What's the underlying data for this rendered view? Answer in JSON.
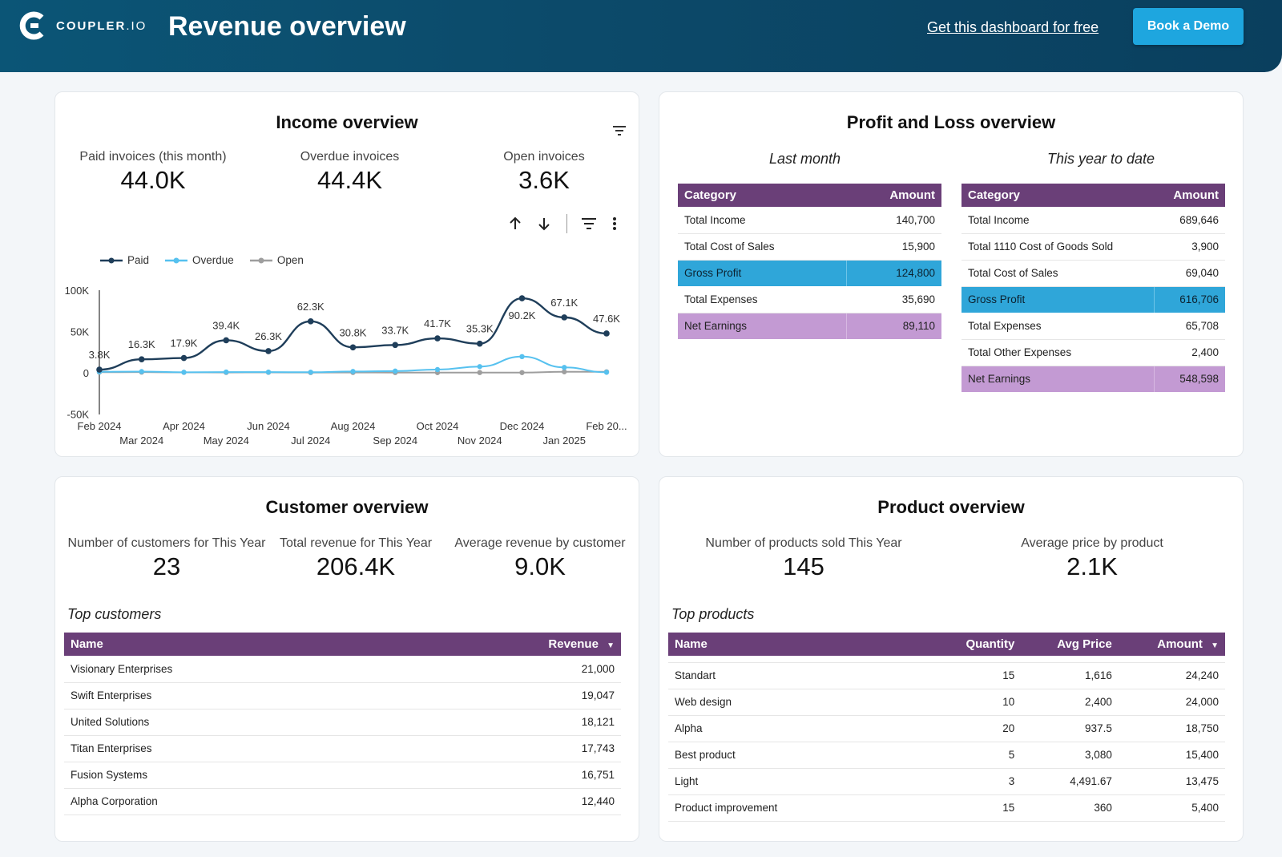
{
  "header": {
    "brand_main": "COUPLER",
    "brand_suffix": ".IO",
    "title": "Revenue overview",
    "link_label": "Get this dashboard for free",
    "button_label": "Book a Demo",
    "bg_color": "#0b5576",
    "button_color": "#1ea6df"
  },
  "income": {
    "title": "Income overview",
    "kpis": [
      {
        "label": "Paid invoices (this month)",
        "value": "44.0K"
      },
      {
        "label": "Overdue invoices",
        "value": "44.4K"
      },
      {
        "label": "Open invoices",
        "value": "3.6K"
      }
    ],
    "toolbar_icons": [
      "arrow-up-icon",
      "arrow-down-icon",
      "filter-icon",
      "more-vert-icon"
    ]
  },
  "chart_data": {
    "type": "line",
    "title": "",
    "x": [
      "Feb 2024",
      "Mar 2024",
      "Apr 2024",
      "May 2024",
      "Jun 2024",
      "Jul 2024",
      "Aug 2024",
      "Sep 2024",
      "Oct 2024",
      "Nov 2024",
      "Dec 2024",
      "Jan 2025",
      "Feb 20..."
    ],
    "series": [
      {
        "name": "Paid",
        "color": "#1f3e5a",
        "values": [
          3800,
          16300,
          17900,
          39400,
          26300,
          62300,
          30800,
          33700,
          41700,
          35300,
          90200,
          67100,
          47600
        ],
        "labels": [
          "3.8K",
          "16.3K",
          "17.9K",
          "39.4K",
          "26.3K",
          "62.3K",
          "30.8K",
          "33.7K",
          "41.7K",
          "35.3K",
          "90.2K",
          "67.1K",
          "47.6K"
        ]
      },
      {
        "name": "Overdue",
        "color": "#56c1ef",
        "values": [
          1200,
          1500,
          600,
          900,
          800,
          700,
          1600,
          2100,
          3900,
          7500,
          19600,
          6500,
          600
        ]
      },
      {
        "name": "Open",
        "color": "#9e9e9e",
        "values": [
          700,
          800,
          500,
          400,
          500,
          300,
          400,
          300,
          200,
          300,
          200,
          1200,
          1200
        ]
      }
    ],
    "yticks": [
      "100K",
      "50K",
      "0",
      "-50K"
    ],
    "ylim": [
      -50000,
      100000
    ],
    "legend": "top-left"
  },
  "pnl": {
    "title": "Profit and Loss overview",
    "last_month": {
      "heading": "Last month",
      "col_category": "Category",
      "col_amount": "Amount",
      "rows": [
        {
          "category": "Total Income",
          "amount": "140,700"
        },
        {
          "category": "Total Cost of Sales",
          "amount": "15,900"
        },
        {
          "category": "Gross Profit",
          "amount": "124,800"
        },
        {
          "category": "Total Expenses",
          "amount": "35,690"
        },
        {
          "category": "Net Earnings",
          "amount": "89,110"
        }
      ]
    },
    "ytd": {
      "heading": "This year to date",
      "col_category": "Category",
      "col_amount": "Amount",
      "rows": [
        {
          "category": "Total Income",
          "amount": "689,646"
        },
        {
          "category": "Total 1110 Cost of Goods Sold",
          "amount": "3,900"
        },
        {
          "category": "Total Cost of Sales",
          "amount": "69,040"
        },
        {
          "category": "Gross Profit",
          "amount": "616,706"
        },
        {
          "category": "Total Expenses",
          "amount": "65,708"
        },
        {
          "category": "Total Other Expenses",
          "amount": "2,400"
        },
        {
          "category": "Net Earnings",
          "amount": "548,598"
        }
      ]
    },
    "gross_color": "#2fa6d9",
    "net_color": "#c39ad3",
    "head_color": "#6a3f78"
  },
  "customer": {
    "title": "Customer overview",
    "kpis": [
      {
        "label": "Number of customers for This Year",
        "value": "23"
      },
      {
        "label": "Total revenue for This Year",
        "value": "206.4K"
      },
      {
        "label": "Average revenue by customer",
        "value": "9.0K"
      }
    ],
    "table_heading": "Top customers",
    "col_name": "Name",
    "col_revenue": "Revenue",
    "rows": [
      {
        "name": "Visionary Enterprises",
        "revenue": "21,000"
      },
      {
        "name": "Swift Enterprises",
        "revenue": "19,047"
      },
      {
        "name": "United Solutions",
        "revenue": "18,121"
      },
      {
        "name": "Titan Enterprises",
        "revenue": "17,743"
      },
      {
        "name": "Fusion Systems",
        "revenue": "16,751"
      },
      {
        "name": "Alpha Corporation",
        "revenue": "12,440"
      }
    ]
  },
  "product": {
    "title": "Product overview",
    "kpis": [
      {
        "label": "Number of products sold This Year",
        "value": "145"
      },
      {
        "label": "Average price by product",
        "value": "2.1K"
      }
    ],
    "table_heading": "Top products",
    "col_name": "Name",
    "col_quantity": "Quantity",
    "col_avg_price": "Avg Price",
    "col_amount": "Amount",
    "rows": [
      {
        "name": "Standart",
        "quantity": "15",
        "avg_price": "1,616",
        "amount": "24,240"
      },
      {
        "name": "Web design",
        "quantity": "10",
        "avg_price": "2,400",
        "amount": "24,000"
      },
      {
        "name": "Alpha",
        "quantity": "20",
        "avg_price": "937.5",
        "amount": "18,750"
      },
      {
        "name": "Best product",
        "quantity": "5",
        "avg_price": "3,080",
        "amount": "15,400"
      },
      {
        "name": "Light",
        "quantity": "3",
        "avg_price": "4,491.67",
        "amount": "13,475"
      },
      {
        "name": "Product improvement",
        "quantity": "15",
        "avg_price": "360",
        "amount": "5,400"
      }
    ]
  }
}
